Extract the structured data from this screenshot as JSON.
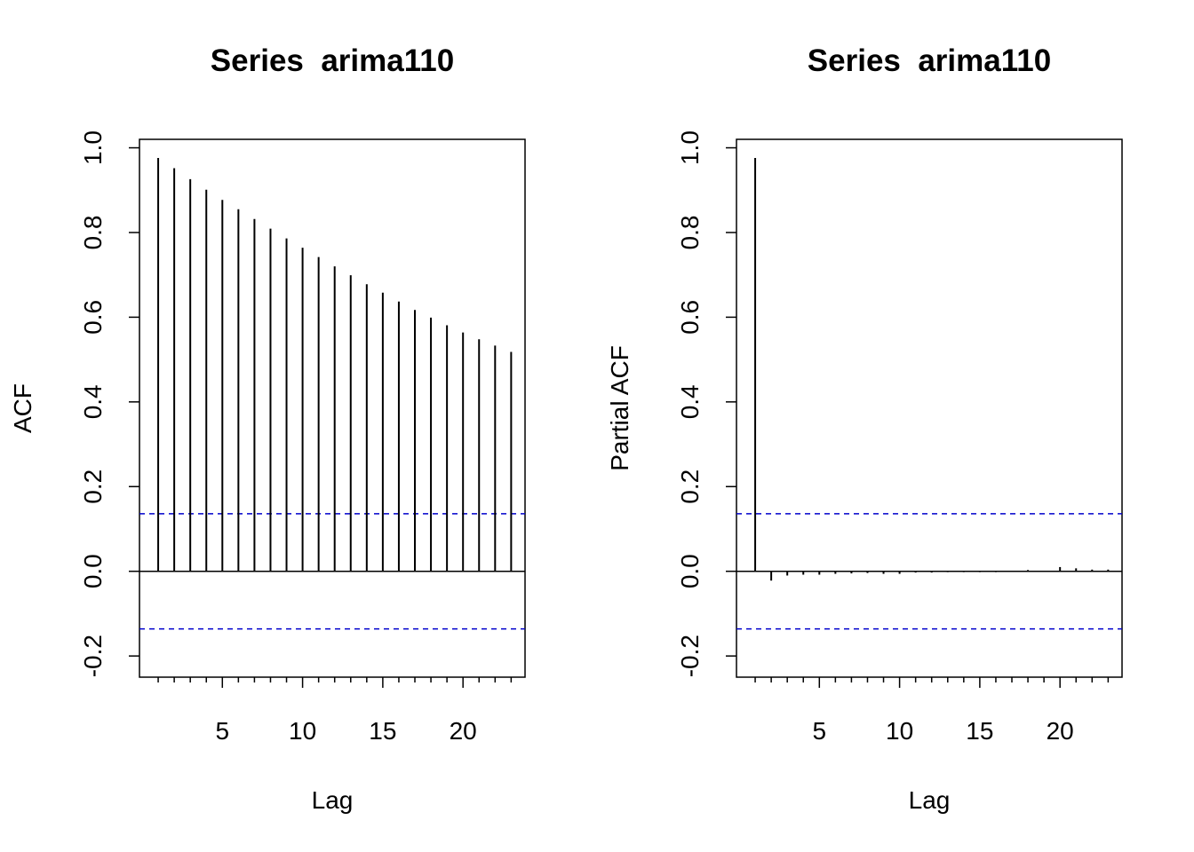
{
  "colors": {
    "background": "#ffffff",
    "bars": "#000000",
    "confidence_band": "#0000cc",
    "frame": "#000000"
  },
  "chart_data": [
    {
      "type": "bar",
      "title": "Series  arima110",
      "xlabel": "Lag",
      "ylabel": "ACF",
      "lags": [
        1,
        2,
        3,
        4,
        5,
        6,
        7,
        8,
        9,
        10,
        11,
        12,
        13,
        14,
        15,
        16,
        17,
        18,
        19,
        20,
        21,
        22,
        23
      ],
      "values": [
        0.976,
        0.952,
        0.926,
        0.901,
        0.877,
        0.855,
        0.832,
        0.809,
        0.786,
        0.764,
        0.742,
        0.72,
        0.699,
        0.678,
        0.658,
        0.637,
        0.617,
        0.599,
        0.581,
        0.564,
        0.548,
        0.533,
        0.518
      ],
      "confidence_limits": [
        0.136,
        -0.136
      ],
      "xlim": [
        0,
        23.7
      ],
      "ylim": [
        -0.25,
        1.02
      ],
      "xticks": [
        5,
        10,
        15,
        20
      ],
      "yticks": [
        -0.2,
        0.0,
        0.2,
        0.4,
        0.6,
        0.8,
        1.0
      ],
      "ytick_labels": [
        "-0.2",
        "0.0",
        "0.2",
        "0.4",
        "0.6",
        "0.8",
        "1.0"
      ],
      "zero_line": true,
      "grid": false
    },
    {
      "type": "bar",
      "title": "Series  arima110",
      "xlabel": "Lag",
      "ylabel": "Partial ACF",
      "lags": [
        1,
        2,
        3,
        4,
        5,
        6,
        7,
        8,
        9,
        10,
        11,
        12,
        13,
        14,
        15,
        16,
        17,
        18,
        19,
        20,
        21,
        22,
        23
      ],
      "values": [
        0.976,
        -0.022,
        -0.01,
        -0.008,
        -0.008,
        -0.006,
        -0.005,
        -0.004,
        -0.006,
        -0.006,
        -0.003,
        -0.003,
        -0.002,
        -0.002,
        -0.002,
        -0.002,
        -0.001,
        0.003,
        -0.001,
        0.01,
        0.007,
        0.004,
        0.004
      ],
      "confidence_limits": [
        0.136,
        -0.136
      ],
      "xlim": [
        0,
        23.7
      ],
      "ylim": [
        -0.25,
        1.02
      ],
      "xticks": [
        5,
        10,
        15,
        20
      ],
      "yticks": [
        -0.2,
        0.0,
        0.2,
        0.4,
        0.6,
        0.8,
        1.0
      ],
      "ytick_labels": [
        "-0.2",
        "0.0",
        "0.2",
        "0.4",
        "0.6",
        "0.8",
        "1.0"
      ],
      "zero_line": true,
      "grid": false
    }
  ]
}
